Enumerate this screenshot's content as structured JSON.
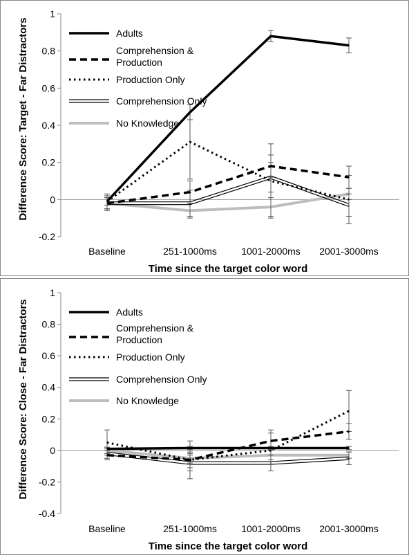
{
  "chart_data": [
    {
      "type": "line",
      "categories": [
        "Baseline",
        "251-1000ms",
        "1001-2000ms",
        "2001-3000ms"
      ],
      "xlabel": "Time since the target color word",
      "ylabel": "Difference Score: Target - Far Distractors",
      "ylim": [
        -0.2,
        1
      ],
      "yticks": [
        "-0.2",
        "0",
        "0.2",
        "0.4",
        "0.6",
        "0.8",
        "1"
      ],
      "grid": false,
      "legend_position": "top-left",
      "series": [
        {
          "name": "Adults",
          "style": "solid-thick",
          "color": "#000000",
          "values": [
            -0.01,
            0.47,
            0.88,
            0.83
          ],
          "errors": [
            0.02,
            0.04,
            0.03,
            0.04
          ]
        },
        {
          "name": "Comprehension & Production",
          "style": "dashed",
          "color": "#000000",
          "values": [
            -0.02,
            0.04,
            0.18,
            0.12
          ],
          "errors": [
            0.04,
            0.06,
            0.06,
            0.06
          ]
        },
        {
          "name": "Production Only",
          "style": "dotted",
          "color": "#000000",
          "values": [
            -0.01,
            0.31,
            0.1,
            0.0
          ],
          "errors": [
            0.04,
            0.2,
            0.2,
            0.13
          ]
        },
        {
          "name": "Comprehension Only",
          "style": "double",
          "color": "#000000",
          "values": [
            -0.02,
            -0.02,
            0.12,
            -0.03
          ],
          "errors": [
            0.03,
            0.07,
            0.08,
            0.06
          ]
        },
        {
          "name": "No Knowledge",
          "style": "solid-gray",
          "color": "#bdbdbd",
          "values": [
            -0.02,
            -0.06,
            -0.04,
            0.03
          ],
          "errors": [
            0.03,
            0.04,
            0.05,
            0.03
          ]
        }
      ]
    },
    {
      "type": "line",
      "categories": [
        "Baseline",
        "251-1000ms",
        "1001-2000ms",
        "2001-3000ms"
      ],
      "xlabel": "Time since the target color word",
      "ylabel": "Difference Score: Close - Far Distractors",
      "ylim": [
        -0.4,
        1
      ],
      "yticks": [
        "-0.4",
        "-0.2",
        "0",
        "0.2",
        "0.4",
        "0.6",
        "0.8",
        "1"
      ],
      "grid": false,
      "legend_position": "top-left",
      "series": [
        {
          "name": "Adults",
          "style": "solid-thick",
          "color": "#000000",
          "values": [
            0.01,
            0.015,
            0.015,
            0.015
          ],
          "errors": [
            0.01,
            0.01,
            0.01,
            0.01
          ]
        },
        {
          "name": "Comprehension & Production",
          "style": "dashed",
          "color": "#000000",
          "values": [
            -0.03,
            -0.06,
            0.06,
            0.12
          ],
          "errors": [
            0.03,
            0.05,
            0.05,
            0.05
          ]
        },
        {
          "name": "Production Only",
          "style": "dotted",
          "color": "#000000",
          "values": [
            0.05,
            -0.06,
            0.0,
            0.25
          ],
          "errors": [
            0.08,
            0.12,
            0.13,
            0.13
          ]
        },
        {
          "name": "Comprehension Only",
          "style": "double",
          "color": "#000000",
          "values": [
            -0.02,
            -0.08,
            -0.08,
            -0.05
          ],
          "errors": [
            0.03,
            0.05,
            0.05,
            0.04
          ]
        },
        {
          "name": "No Knowledge",
          "style": "solid-gray",
          "color": "#bdbdbd",
          "values": [
            0.0,
            -0.05,
            -0.03,
            -0.03
          ],
          "errors": [
            0.02,
            0.03,
            0.03,
            0.02
          ]
        }
      ]
    }
  ]
}
